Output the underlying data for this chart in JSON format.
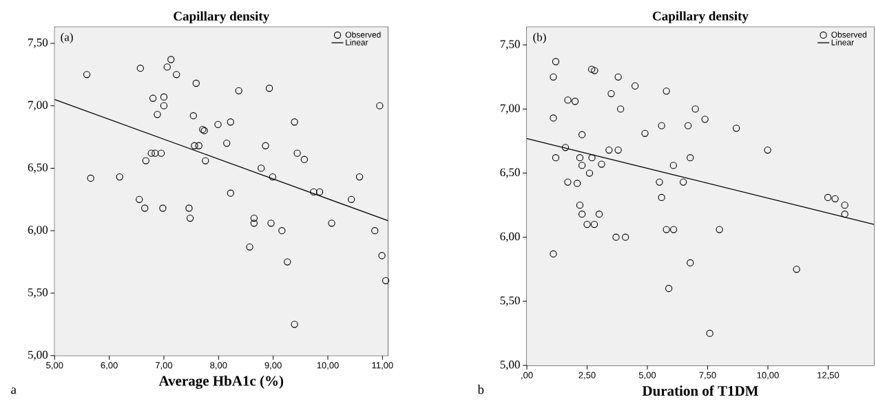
{
  "chart_data": [
    {
      "type": "scatter",
      "title": "Capillary density",
      "xlabel": "Average HbA1c (%)",
      "annotations": [
        "(a)",
        "a"
      ],
      "legend": "top right",
      "xlim": [
        5,
        11.1
      ],
      "ylim": [
        5,
        7.63
      ],
      "xticks": [
        {
          "value": 5,
          "label": "5,00"
        },
        {
          "value": 6,
          "label": "6,00"
        },
        {
          "value": 7,
          "label": "7,00"
        },
        {
          "value": 8,
          "label": "8,00"
        },
        {
          "value": 9,
          "label": "9,00"
        },
        {
          "value": 10,
          "label": "10,00"
        },
        {
          "value": 11,
          "label": "11,00"
        }
      ],
      "yticks": [
        {
          "value": 5,
          "label": "5,00"
        },
        {
          "value": 5.5,
          "label": "5,50"
        },
        {
          "value": 6,
          "label": "6,00"
        },
        {
          "value": 6.5,
          "label": "6,50"
        },
        {
          "value": 7,
          "label": "7,00"
        },
        {
          "value": 7.5,
          "label": "7,50"
        }
      ],
      "series": [
        {
          "name": "Observed",
          "marker": "circle",
          "color": "#000000",
          "x": [
            5.59,
            6.57,
            7.13,
            7.06,
            7.23,
            7.59,
            8.37,
            8.93,
            6.8,
            7.0,
            7.0,
            6.88,
            7.54,
            7.71,
            7.74,
            7.99,
            8.22,
            9.39,
            10.95,
            7.56,
            7.64,
            8.15,
            8.86,
            6.77,
            6.84,
            6.95,
            9.44,
            9.57,
            6.67,
            7.76,
            8.78,
            8.99,
            5.66,
            6.19,
            10.58,
            9.74,
            9.85,
            10.43,
            8.22,
            6.55,
            6.65,
            6.98,
            7.46,
            7.48,
            8.65,
            8.65,
            8.96,
            9.16,
            10.07,
            10.86,
            8.57,
            9.26,
            10.99,
            11.06,
            9.39
          ],
          "values": [
            7.25,
            7.3,
            7.37,
            7.31,
            7.25,
            7.18,
            7.12,
            7.14,
            7.06,
            7.07,
            7.0,
            6.93,
            6.92,
            6.81,
            6.8,
            6.85,
            6.87,
            6.87,
            7.0,
            6.68,
            6.68,
            6.7,
            6.68,
            6.62,
            6.62,
            6.62,
            6.62,
            6.57,
            6.56,
            6.56,
            6.5,
            6.43,
            6.42,
            6.43,
            6.43,
            6.31,
            6.31,
            6.25,
            6.3,
            6.25,
            6.18,
            6.18,
            6.18,
            6.1,
            6.1,
            6.06,
            6.06,
            6.0,
            6.06,
            6.0,
            5.87,
            5.75,
            5.8,
            5.6,
            5.25
          ]
        },
        {
          "name": "Linear",
          "type": "line",
          "marker": "none",
          "color": "#000000",
          "x": [
            5,
            11.1
          ],
          "values": [
            7.05,
            6.08
          ]
        }
      ]
    },
    {
      "type": "scatter",
      "title": "Capillary density",
      "xlabel": "Duration of T1DM",
      "annotations": [
        "(b)",
        "b"
      ],
      "legend": "top right",
      "xlim": [
        0,
        14.4
      ],
      "ylim": [
        5,
        7.64
      ],
      "xticks": [
        {
          "value": 0,
          "label": ",00"
        },
        {
          "value": 2.5,
          "label": "2,50"
        },
        {
          "value": 5,
          "label": "5,00"
        },
        {
          "value": 7.5,
          "label": "7,50"
        },
        {
          "value": 10,
          "label": "10,00"
        },
        {
          "value": 12.5,
          "label": "12,50"
        }
      ],
      "yticks": [
        {
          "value": 5,
          "label": "5,00"
        },
        {
          "value": 5.5,
          "label": "5,50"
        },
        {
          "value": 6,
          "label": "6,00"
        },
        {
          "value": 6.5,
          "label": "6,50"
        },
        {
          "value": 7,
          "label": "7,00"
        },
        {
          "value": 7.5,
          "label": "7,50"
        }
      ],
      "series": [
        {
          "name": "Observed",
          "marker": "circle",
          "color": "#000000",
          "x": [
            1.2,
            1.1,
            2.69,
            2.81,
            3.79,
            4.49,
            3.5,
            5.79,
            1.7,
            2.0,
            3.89,
            6.99,
            7.39,
            1.1,
            2.29,
            4.9,
            5.59,
            6.69,
            8.69,
            9.99,
            1.6,
            3.41,
            3.79,
            1.2,
            2.2,
            2.7,
            6.78,
            2.29,
            3.1,
            6.08,
            2.6,
            1.7,
            2.09,
            5.5,
            6.49,
            5.59,
            12.49,
            12.79,
            13.19,
            13.19,
            2.2,
            2.29,
            3.0,
            2.5,
            2.8,
            3.7,
            4.09,
            5.79,
            6.09,
            7.99,
            1.1,
            6.78,
            11.19,
            5.89,
            7.59
          ],
          "values": [
            7.37,
            7.25,
            7.31,
            7.3,
            7.25,
            7.18,
            7.12,
            7.14,
            7.07,
            7.06,
            7.0,
            7.0,
            6.92,
            6.93,
            6.8,
            6.81,
            6.87,
            6.87,
            6.85,
            6.68,
            6.7,
            6.68,
            6.68,
            6.62,
            6.62,
            6.62,
            6.62,
            6.56,
            6.57,
            6.56,
            6.5,
            6.43,
            6.42,
            6.43,
            6.43,
            6.31,
            6.31,
            6.3,
            6.25,
            6.18,
            6.25,
            6.18,
            6.18,
            6.1,
            6.1,
            6.0,
            6.0,
            6.06,
            6.06,
            6.06,
            5.87,
            5.8,
            5.75,
            5.6,
            5.25
          ]
        },
        {
          "name": "Linear",
          "type": "line",
          "marker": "none",
          "color": "#000000",
          "x": [
            0,
            14.4
          ],
          "values": [
            6.77,
            6.1
          ]
        }
      ]
    }
  ]
}
